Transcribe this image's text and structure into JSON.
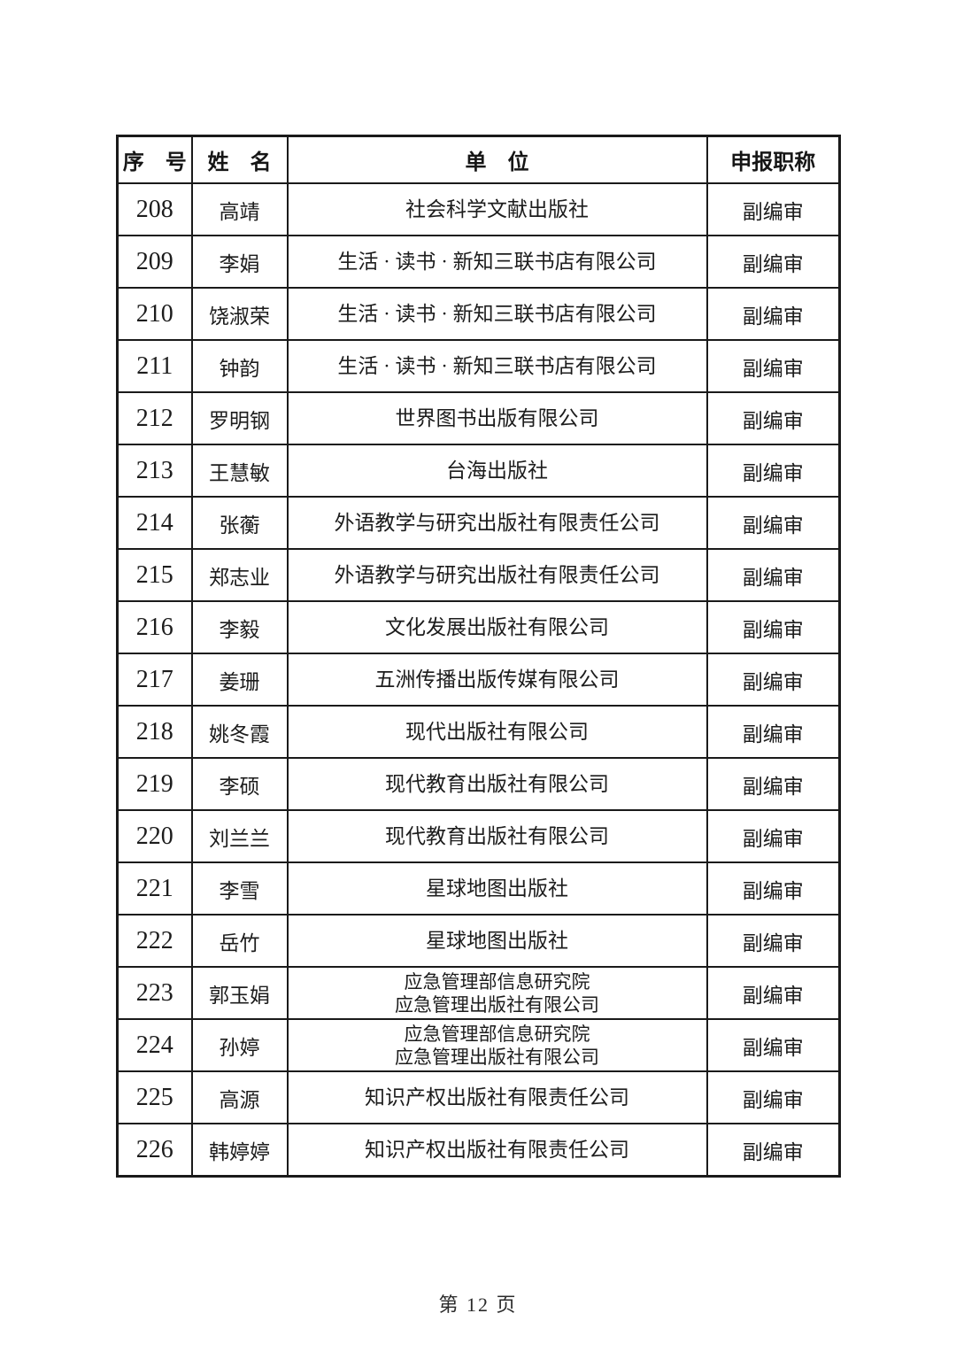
{
  "document": {
    "footer_page_label": "第 12 页"
  },
  "table": {
    "headers": [
      "序　号",
      "姓　名",
      "单　位",
      "申报职称"
    ],
    "rows": [
      {
        "no": "208",
        "name": "高靖",
        "org": [
          "社会科学文献出版社"
        ],
        "title": "副编审"
      },
      {
        "no": "209",
        "name": "李娟",
        "org": [
          "生活 · 读书 · 新知三联书店有限公司"
        ],
        "title": "副编审"
      },
      {
        "no": "210",
        "name": "饶淑荣",
        "org": [
          "生活 · 读书 · 新知三联书店有限公司"
        ],
        "title": "副编审"
      },
      {
        "no": "211",
        "name": "钟韵",
        "org": [
          "生活 · 读书 · 新知三联书店有限公司"
        ],
        "title": "副编审"
      },
      {
        "no": "212",
        "name": "罗明钢",
        "org": [
          "世界图书出版有限公司"
        ],
        "title": "副编审"
      },
      {
        "no": "213",
        "name": "王慧敏",
        "org": [
          "台海出版社"
        ],
        "title": "副编审"
      },
      {
        "no": "214",
        "name": "张蘅",
        "org": [
          "外语教学与研究出版社有限责任公司"
        ],
        "title": "副编审"
      },
      {
        "no": "215",
        "name": "郑志业",
        "org": [
          "外语教学与研究出版社有限责任公司"
        ],
        "title": "副编审"
      },
      {
        "no": "216",
        "name": "李毅",
        "org": [
          "文化发展出版社有限公司"
        ],
        "title": "副编审"
      },
      {
        "no": "217",
        "name": "姜珊",
        "org": [
          "五洲传播出版传媒有限公司"
        ],
        "title": "副编审"
      },
      {
        "no": "218",
        "name": "姚冬霞",
        "org": [
          "现代出版社有限公司"
        ],
        "title": "副编审"
      },
      {
        "no": "219",
        "name": "李硕",
        "org": [
          "现代教育出版社有限公司"
        ],
        "title": "副编审"
      },
      {
        "no": "220",
        "name": "刘兰兰",
        "org": [
          "现代教育出版社有限公司"
        ],
        "title": "副编审"
      },
      {
        "no": "221",
        "name": "李雪",
        "org": [
          "星球地图出版社"
        ],
        "title": "副编审"
      },
      {
        "no": "222",
        "name": "岳竹",
        "org": [
          "星球地图出版社"
        ],
        "title": "副编审"
      },
      {
        "no": "223",
        "name": "郭玉娟",
        "org": [
          "应急管理部信息研究院",
          "应急管理出版社有限公司"
        ],
        "title": "副编审"
      },
      {
        "no": "224",
        "name": "孙婷",
        "org": [
          "应急管理部信息研究院",
          "应急管理出版社有限公司"
        ],
        "title": "副编审"
      },
      {
        "no": "225",
        "name": "高源",
        "org": [
          "知识产权出版社有限责任公司"
        ],
        "title": "副编审"
      },
      {
        "no": "226",
        "name": "韩婷婷",
        "org": [
          "知识产权出版社有限责任公司"
        ],
        "title": "副编审"
      }
    ]
  }
}
